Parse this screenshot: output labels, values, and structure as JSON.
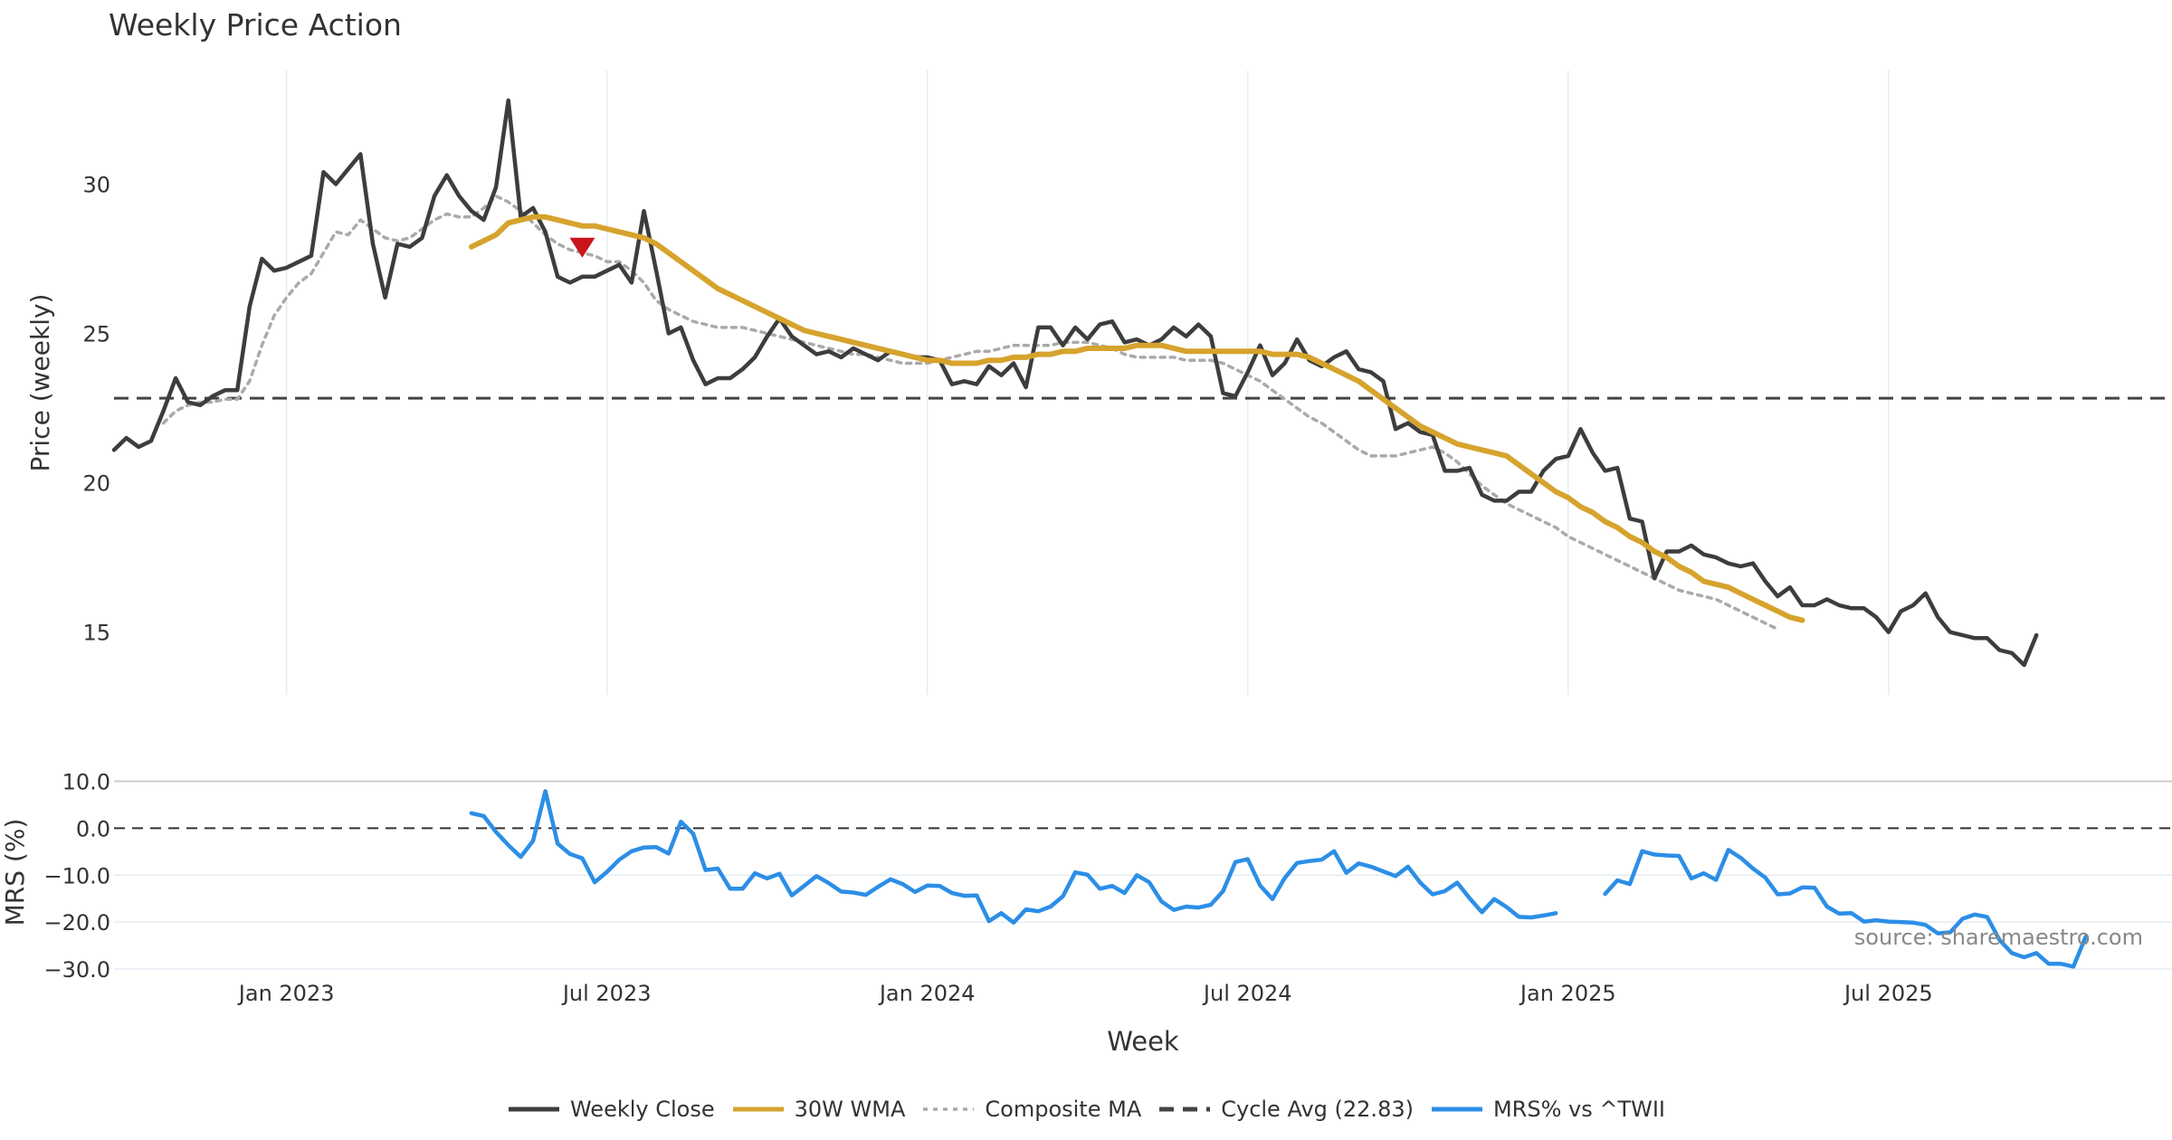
{
  "title": "Weekly Price Action",
  "source": "source: sharemaestro.com",
  "colors": {
    "close": "#3d3d3d",
    "wma": "#d6a32d",
    "composite": "#aaaaaa",
    "cycle": "#444444",
    "mrs": "#2c8ee6",
    "marker": "#c8151b",
    "grid": "#e4ecf2"
  },
  "legend": [
    {
      "key": "close",
      "label": "Weekly Close",
      "style": "solid"
    },
    {
      "key": "wma",
      "label": "30W WMA",
      "style": "solid"
    },
    {
      "key": "composite",
      "label": "Composite MA",
      "style": "dotted"
    },
    {
      "key": "cycle",
      "label": "Cycle Avg (22.83)",
      "style": "dashed"
    },
    {
      "key": "mrs",
      "label": "MRS% vs ^TWII",
      "style": "solid"
    }
  ],
  "chart_data": {
    "type": "line",
    "xlabel": "Week",
    "x_ticks": [
      "Jan 2023",
      "Jul 2023",
      "Jan 2024",
      "Jul 2024",
      "Jan 2025",
      "Jul 2025"
    ],
    "x_tick_index": [
      14,
      40,
      66,
      92,
      118,
      144
    ],
    "price_panel": {
      "ylabel": "Price (weekly)",
      "ylim": [
        12.9,
        33.8
      ],
      "y_ticks": [
        15,
        20,
        25,
        30
      ],
      "cycle_avg": 22.83,
      "marker": {
        "type": "sell-triangle",
        "index": 38,
        "value": 27.9
      },
      "series": [
        {
          "name": "Weekly Close",
          "key": "close",
          "start_index": 0,
          "values": [
            21.1,
            21.5,
            21.2,
            21.4,
            22.4,
            23.5,
            22.7,
            22.6,
            22.9,
            23.1,
            23.1,
            25.9,
            27.5,
            27.1,
            27.2,
            27.4,
            27.6,
            30.4,
            30.0,
            30.5,
            31.0,
            28.0,
            26.2,
            28.0,
            27.9,
            28.2,
            29.6,
            30.3,
            29.6,
            29.1,
            28.8,
            29.9,
            32.8,
            28.9,
            29.2,
            28.4,
            26.9,
            26.7,
            26.9,
            26.9,
            27.1,
            27.3,
            26.7,
            29.1,
            27.1,
            25.0,
            25.2,
            24.1,
            23.3,
            23.5,
            23.5,
            23.8,
            24.2,
            24.9,
            25.5,
            24.9,
            24.6,
            24.3,
            24.4,
            24.2,
            24.5,
            24.3,
            24.1,
            24.4,
            24.3,
            24.2,
            24.2,
            24.1,
            23.3,
            23.4,
            23.3,
            23.9,
            23.6,
            24.0,
            23.2,
            25.2,
            25.2,
            24.6,
            25.2,
            24.8,
            25.3,
            25.4,
            24.7,
            24.8,
            24.6,
            24.8,
            25.2,
            24.9,
            25.3,
            24.9,
            23.0,
            22.9,
            23.7,
            24.6,
            23.6,
            24.0,
            24.8,
            24.1,
            23.9,
            24.2,
            24.4,
            23.8,
            23.7,
            23.4,
            21.8,
            22.0,
            21.7,
            21.6,
            20.4,
            20.4,
            20.5,
            19.6,
            19.4,
            19.4,
            19.7,
            19.7,
            20.4,
            20.8,
            20.9,
            21.8,
            21.0,
            20.4,
            20.5,
            18.8,
            18.7,
            16.8,
            17.7,
            17.7,
            17.9,
            17.6,
            17.5,
            17.3,
            17.2,
            17.3,
            16.7,
            16.2,
            16.5,
            15.9,
            15.9,
            16.1,
            15.9,
            15.8,
            15.8,
            15.5,
            15.0,
            15.7,
            15.9,
            16.3,
            15.5,
            15.0,
            14.9,
            14.8,
            14.8,
            14.4,
            14.3,
            13.9,
            14.9
          ]
        },
        {
          "name": "30W WMA",
          "key": "wma",
          "start_index": 29,
          "values": [
            27.9,
            28.1,
            28.3,
            28.7,
            28.8,
            28.9,
            28.9,
            28.8,
            28.7,
            28.6,
            28.6,
            28.5,
            28.4,
            28.3,
            28.2,
            28.0,
            27.7,
            27.4,
            27.1,
            26.8,
            26.5,
            26.3,
            26.1,
            25.9,
            25.7,
            25.5,
            25.3,
            25.1,
            25.0,
            24.9,
            24.8,
            24.7,
            24.6,
            24.5,
            24.4,
            24.3,
            24.2,
            24.1,
            24.1,
            24.0,
            24.0,
            24.0,
            24.1,
            24.1,
            24.2,
            24.2,
            24.3,
            24.3,
            24.4,
            24.4,
            24.5,
            24.5,
            24.5,
            24.5,
            24.6,
            24.6,
            24.6,
            24.5,
            24.4,
            24.4,
            24.4,
            24.4,
            24.4,
            24.4,
            24.4,
            24.3,
            24.3,
            24.3,
            24.2,
            24.0,
            23.8,
            23.6,
            23.4,
            23.1,
            22.8,
            22.5,
            22.2,
            21.9,
            21.7,
            21.5,
            21.3,
            21.2,
            21.1,
            21.0,
            20.9,
            20.6,
            20.3,
            20.0,
            19.7,
            19.5,
            19.2,
            19.0,
            18.7,
            18.5,
            18.2,
            18.0,
            17.7,
            17.5,
            17.2,
            17.0,
            16.7,
            16.6,
            16.5,
            16.3,
            16.1,
            15.9,
            15.7,
            15.5,
            15.4
          ]
        },
        {
          "name": "Composite MA",
          "key": "composite",
          "start_index": 4,
          "values": [
            22.0,
            22.4,
            22.6,
            22.7,
            22.7,
            22.8,
            22.8,
            23.4,
            24.6,
            25.6,
            26.2,
            26.7,
            27.0,
            27.7,
            28.4,
            28.3,
            28.8,
            28.5,
            28.2,
            28.1,
            28.2,
            28.5,
            28.8,
            29.0,
            28.9,
            28.9,
            29.2,
            29.6,
            29.4,
            29.1,
            28.7,
            28.3,
            28.0,
            27.8,
            27.7,
            27.6,
            27.4,
            27.4,
            27.1,
            26.7,
            26.1,
            25.8,
            25.6,
            25.4,
            25.3,
            25.2,
            25.2,
            25.2,
            25.1,
            25.0,
            24.9,
            24.8,
            24.7,
            24.6,
            24.5,
            24.4,
            24.3,
            24.3,
            24.2,
            24.1,
            24.0,
            24.0,
            24.0,
            24.1,
            24.2,
            24.3,
            24.4,
            24.4,
            24.5,
            24.6,
            24.6,
            24.6,
            24.6,
            24.7,
            24.7,
            24.7,
            24.6,
            24.5,
            24.3,
            24.2,
            24.2,
            24.2,
            24.2,
            24.1,
            24.1,
            24.1,
            24.0,
            23.8,
            23.6,
            23.4,
            23.1,
            22.8,
            22.5,
            22.2,
            22.0,
            21.7,
            21.4,
            21.1,
            20.9,
            20.9,
            20.9,
            21.0,
            21.1,
            21.2,
            21.0,
            20.7,
            20.3,
            19.9,
            19.6,
            19.3,
            19.1,
            18.9,
            18.7,
            18.5,
            18.2,
            18.0,
            17.8,
            17.6,
            17.4,
            17.2,
            17.0,
            16.8,
            16.6,
            16.4,
            16.3,
            16.2,
            16.1,
            15.9,
            15.7,
            15.5,
            15.3,
            15.1
          ]
        }
      ]
    },
    "mrs_panel": {
      "ylabel": "MRS (%)",
      "ylim": [
        -30.0,
        13.0
      ],
      "y_ticks": [
        10.0,
        0.0,
        -10.0,
        -20.0,
        -30.0
      ],
      "y_tick_labels": [
        "10.0",
        "0.0",
        "−10.0",
        "−20.0",
        "−30.0"
      ],
      "zero_line": 0.0,
      "series": [
        {
          "name": "MRS% vs ^TWII",
          "key": "mrs",
          "segments": [
            {
              "start_index": 29,
              "values": [
                3.2,
                2.6,
                -0.8,
                -3.6,
                -6.1,
                -2.7,
                7.9,
                -3.3,
                -5.5,
                -6.4,
                -11.5,
                -9.3,
                -6.7,
                -4.9,
                -4.1,
                -4.0,
                -5.4,
                1.4,
                -1.2,
                -8.9,
                -8.6,
                -12.9,
                -12.9,
                -9.6,
                -10.7,
                -9.7,
                -14.3,
                -12.3,
                -10.2,
                -11.7,
                -13.5,
                -13.7,
                -14.2,
                -12.5,
                -10.9,
                -11.9,
                -13.6,
                -12.2,
                -12.3,
                -13.8,
                -14.4,
                -14.3,
                -19.8,
                -18.1,
                -20.1,
                -17.3,
                -17.7,
                -16.7,
                -14.5,
                -9.4,
                -9.9,
                -12.9,
                -12.3,
                -13.8,
                -10.0,
                -11.5,
                -15.6,
                -17.4,
                -16.7,
                -16.9,
                -16.3,
                -13.4,
                -7.2,
                -6.6,
                -12.2,
                -15.1,
                -10.6,
                -7.4,
                -7.0,
                -6.7,
                -4.9,
                -9.5,
                -7.5,
                -8.2,
                -9.2,
                -10.2,
                -8.2,
                -11.6,
                -14.1,
                -13.4,
                -11.6,
                -14.9,
                -17.9,
                -15.1,
                -16.8,
                -18.9,
                -19.0,
                -18.6,
                -18.1
              ]
            },
            {
              "start_index": 121,
              "values": [
                -14.0,
                -11.1,
                -11.9,
                -4.9,
                -5.6,
                -5.8,
                -5.9,
                -10.7,
                -9.6,
                -11.0,
                -4.6,
                -6.3,
                -8.6,
                -10.5,
                -14.1,
                -13.9,
                -12.6,
                -12.7,
                -16.7,
                -18.2,
                -18.1,
                -19.9,
                -19.6,
                -19.9,
                -20.0,
                -20.1,
                -20.6,
                -22.4,
                -22.2,
                -19.3,
                -18.4,
                -18.9,
                -23.8,
                -26.6,
                -27.5,
                -26.6,
                -28.9,
                -28.9,
                -29.5,
                -23.1
              ]
            }
          ]
        }
      ]
    }
  }
}
